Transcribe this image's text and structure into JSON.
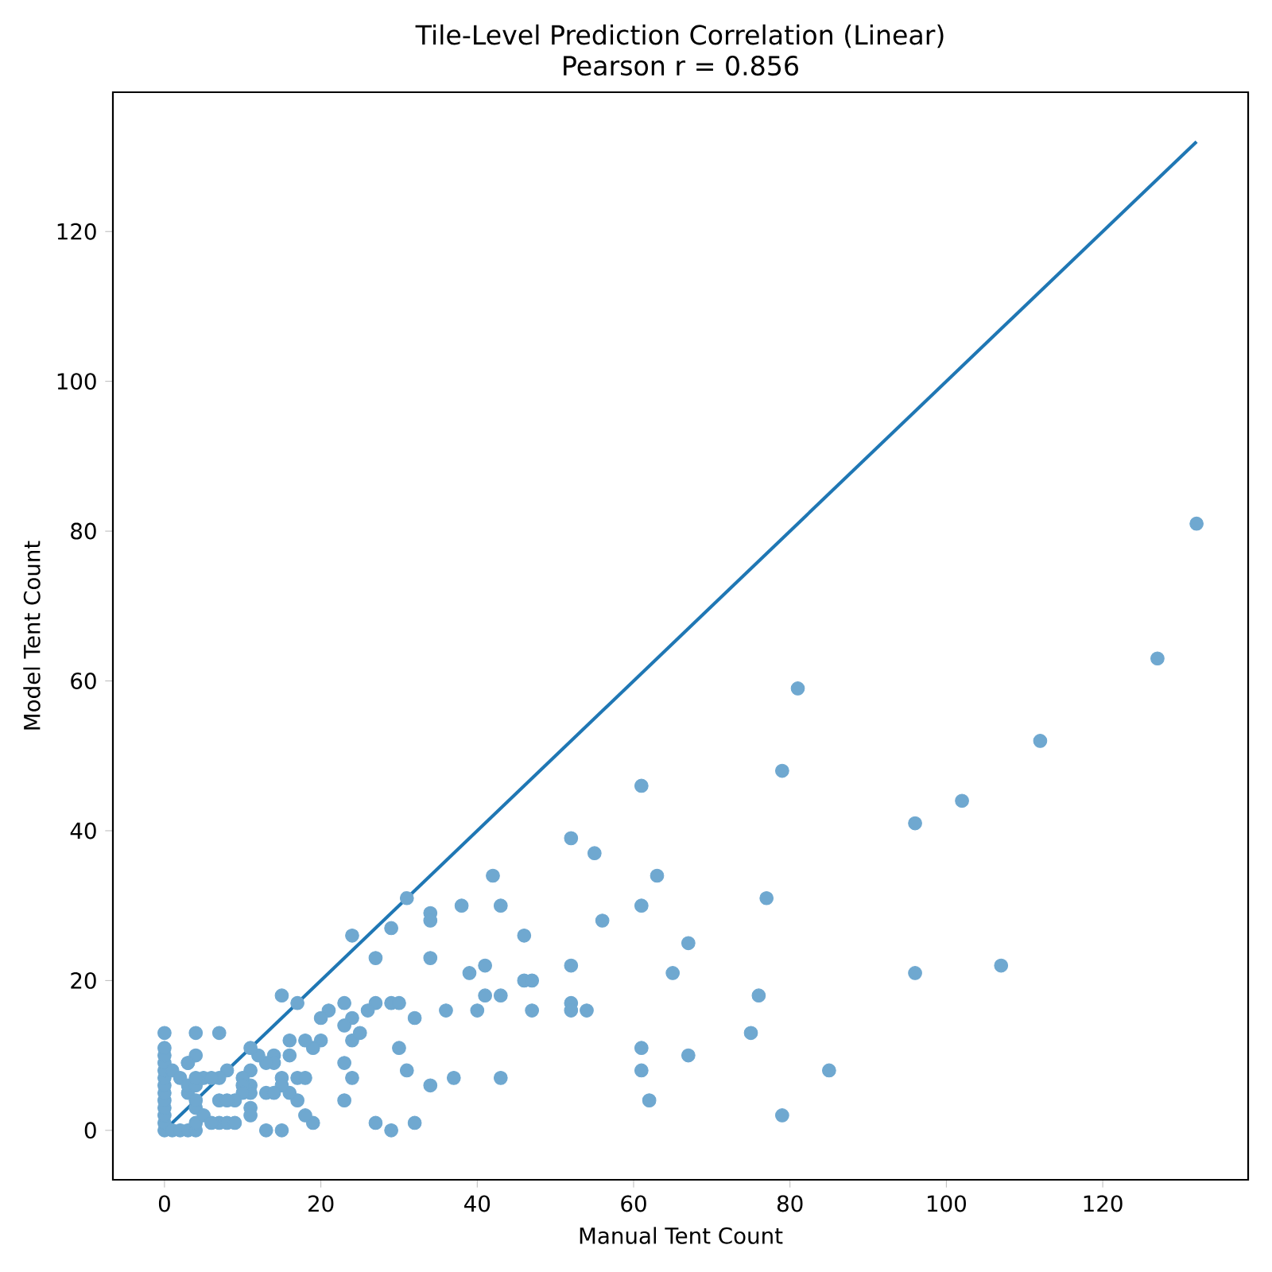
{
  "chart_data": {
    "type": "scatter",
    "title": "Tile-Level Prediction Correlation (Linear)",
    "subtitle": "Pearson r = 0.856",
    "xlabel": "Manual Tent Count",
    "ylabel": "Model Tent Count",
    "xlim": [
      -6.6,
      138.6
    ],
    "ylim": [
      -6.6,
      138.6
    ],
    "xticks": [
      0,
      20,
      40,
      60,
      80,
      100,
      120
    ],
    "yticks": [
      0,
      20,
      40,
      60,
      80,
      100,
      120
    ],
    "series": [
      {
        "color": "#6fa8d0",
        "x": [
          0,
          0,
          0,
          0,
          0,
          0,
          0,
          0,
          0,
          0,
          0,
          0,
          0,
          1,
          1,
          2,
          2,
          3,
          3,
          3,
          3,
          4,
          4,
          4,
          4,
          132,
          127,
          112,
          102,
          96,
          96,
          107,
          81,
          79,
          79,
          85,
          77,
          76,
          75,
          61,
          61,
          61,
          61,
          62,
          63,
          67,
          67,
          65,
          52,
          55,
          56,
          52,
          52,
          52,
          54,
          46,
          47,
          46,
          47,
          42,
          43,
          41,
          41,
          43,
          39,
          40,
          38,
          36,
          37,
          43,
          34,
          34,
          34,
          34,
          31,
          32,
          31,
          30,
          32,
          29,
          27,
          27,
          29,
          30,
          27,
          29,
          24,
          23,
          24,
          23,
          24,
          24,
          23,
          26,
          25,
          23,
          21,
          20,
          20,
          19,
          18,
          19,
          18,
          17,
          17,
          15,
          16,
          16,
          16,
          15,
          13,
          14,
          14,
          17,
          18,
          15,
          15,
          13,
          13,
          12,
          11,
          11,
          11,
          11,
          11,
          11,
          14,
          10,
          10,
          10,
          9,
          8,
          7,
          7,
          7,
          8,
          7,
          4,
          4,
          3,
          5,
          6,
          4,
          4,
          5,
          6,
          8,
          9
        ],
        "values": [
          0,
          1,
          2,
          3,
          4,
          5,
          6,
          7,
          8,
          9,
          10,
          11,
          13,
          0,
          8,
          0,
          7,
          0,
          5,
          6,
          9,
          0,
          1,
          3,
          4,
          81,
          63,
          52,
          44,
          41,
          21,
          22,
          59,
          48,
          2,
          8,
          31,
          18,
          13,
          46,
          30,
          11,
          8,
          4,
          34,
          25,
          10,
          21,
          39,
          37,
          28,
          22,
          17,
          16,
          16,
          20,
          20,
          26,
          16,
          34,
          30,
          22,
          18,
          18,
          21,
          16,
          30,
          16,
          7,
          7,
          29,
          28,
          23,
          6,
          31,
          15,
          8,
          11,
          1,
          27,
          23,
          17,
          17,
          17,
          1,
          0,
          26,
          17,
          15,
          14,
          12,
          7,
          4,
          16,
          13,
          9,
          16,
          15,
          12,
          11,
          12,
          1,
          2,
          4,
          17,
          18,
          12,
          10,
          5,
          0,
          0,
          10,
          9,
          7,
          7,
          7,
          6,
          9,
          5,
          10,
          11,
          8,
          6,
          5,
          3,
          2,
          5,
          7,
          6,
          5,
          4,
          8,
          7,
          4,
          1,
          1,
          13,
          13,
          10,
          9,
          7,
          7,
          6,
          7,
          2,
          1,
          4,
          1
        ]
      },
      {
        "type": "line",
        "marker": "none",
        "color": "#1f77b4",
        "x": [
          0,
          132
        ],
        "values": [
          0,
          132
        ]
      }
    ]
  }
}
